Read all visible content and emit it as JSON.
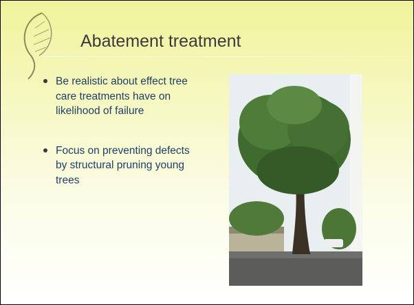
{
  "slide": {
    "title": "Abatement treatment",
    "bullets": [
      "Be realistic about effect tree care treatments have on likelihood of failure",
      "Focus on preventing defects by structural pruning young trees"
    ]
  }
}
